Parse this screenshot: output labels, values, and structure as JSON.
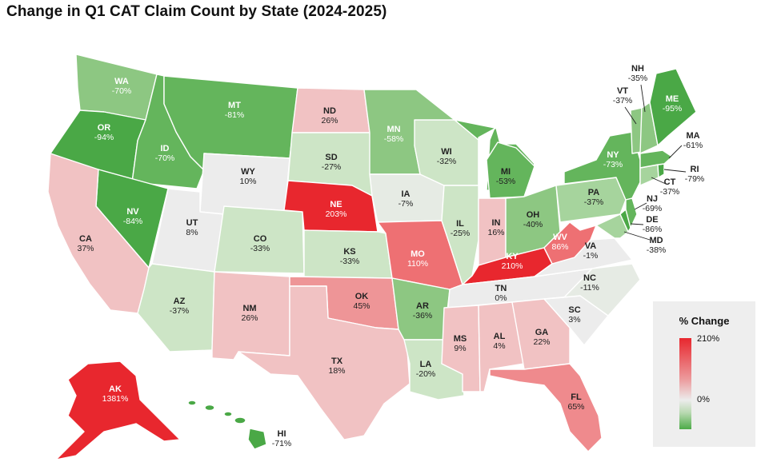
{
  "title": "Change in Q1 CAT Claim Count by State (2024-2025)",
  "legend": {
    "title": "% Change",
    "max_label": "210%",
    "mid_label": "0%"
  },
  "colors": {
    "strong_red": "#e8272e",
    "mid_red": "#ee7073",
    "light_red": "#f1c2c3",
    "neutral": "#ececec",
    "light_green": "#cde5c6",
    "mid_green": "#8dc782",
    "green": "#64b55c",
    "strong_green": "#4aa846"
  },
  "states": {
    "WA": {
      "abbr": "WA",
      "change": "-70%"
    },
    "OR": {
      "abbr": "OR",
      "change": "-94%"
    },
    "ID": {
      "abbr": "ID",
      "change": "-70%"
    },
    "MT": {
      "abbr": "MT",
      "change": "-81%"
    },
    "ND": {
      "abbr": "ND",
      "change": "26%"
    },
    "MN": {
      "abbr": "MN",
      "change": "-58%"
    },
    "WI": {
      "abbr": "WI",
      "change": "-32%"
    },
    "MI": {
      "abbr": "MI",
      "change": "-53%"
    },
    "NV": {
      "abbr": "NV",
      "change": "-84%"
    },
    "CA": {
      "abbr": "CA",
      "change": "37%"
    },
    "WY": {
      "abbr": "WY",
      "change": "10%"
    },
    "SD": {
      "abbr": "SD",
      "change": "-27%"
    },
    "UT": {
      "abbr": "UT",
      "change": "8%"
    },
    "CO": {
      "abbr": "CO",
      "change": "-33%"
    },
    "NE": {
      "abbr": "NE",
      "change": "203%"
    },
    "IA": {
      "abbr": "IA",
      "change": "-7%"
    },
    "IL": {
      "abbr": "IL",
      "change": "-25%"
    },
    "IN": {
      "abbr": "IN",
      "change": "16%"
    },
    "OH": {
      "abbr": "OH",
      "change": "-40%"
    },
    "PA": {
      "abbr": "PA",
      "change": "-37%"
    },
    "NY": {
      "abbr": "NY",
      "change": "-73%"
    },
    "ME": {
      "abbr": "ME",
      "change": "-95%"
    },
    "AZ": {
      "abbr": "AZ",
      "change": "-37%"
    },
    "NM": {
      "abbr": "NM",
      "change": "26%"
    },
    "KS": {
      "abbr": "KS",
      "change": "-33%"
    },
    "MO": {
      "abbr": "MO",
      "change": "110%"
    },
    "KY": {
      "abbr": "KY",
      "change": "210%"
    },
    "WV": {
      "abbr": "WV",
      "change": "86%"
    },
    "VA": {
      "abbr": "VA",
      "change": "-1%"
    },
    "OK": {
      "abbr": "OK",
      "change": "45%"
    },
    "AR": {
      "abbr": "AR",
      "change": "-36%"
    },
    "TN": {
      "abbr": "TN",
      "change": "0%"
    },
    "NC": {
      "abbr": "NC",
      "change": "-11%"
    },
    "SC": {
      "abbr": "SC",
      "change": "3%"
    },
    "TX": {
      "abbr": "TX",
      "change": "18%"
    },
    "MS": {
      "abbr": "MS",
      "change": "9%"
    },
    "AL": {
      "abbr": "AL",
      "change": "4%"
    },
    "GA": {
      "abbr": "GA",
      "change": "22%"
    },
    "LA": {
      "abbr": "LA",
      "change": "-20%"
    },
    "FL": {
      "abbr": "FL",
      "change": "65%"
    },
    "AK": {
      "abbr": "AK",
      "change": "1381%"
    },
    "HI": {
      "abbr": "HI",
      "change": "-71%"
    },
    "NH": {
      "abbr": "NH",
      "change": "-35%"
    },
    "VT": {
      "abbr": "VT",
      "change": "-37%"
    },
    "MA": {
      "abbr": "MA",
      "change": "-61%"
    },
    "RI": {
      "abbr": "RI",
      "change": "-79%"
    },
    "CT": {
      "abbr": "CT",
      "change": "-37%"
    },
    "NJ": {
      "abbr": "NJ",
      "change": "-69%"
    },
    "DE": {
      "abbr": "DE",
      "change": "-86%"
    },
    "MD": {
      "abbr": "MD",
      "change": "-38%"
    }
  }
}
